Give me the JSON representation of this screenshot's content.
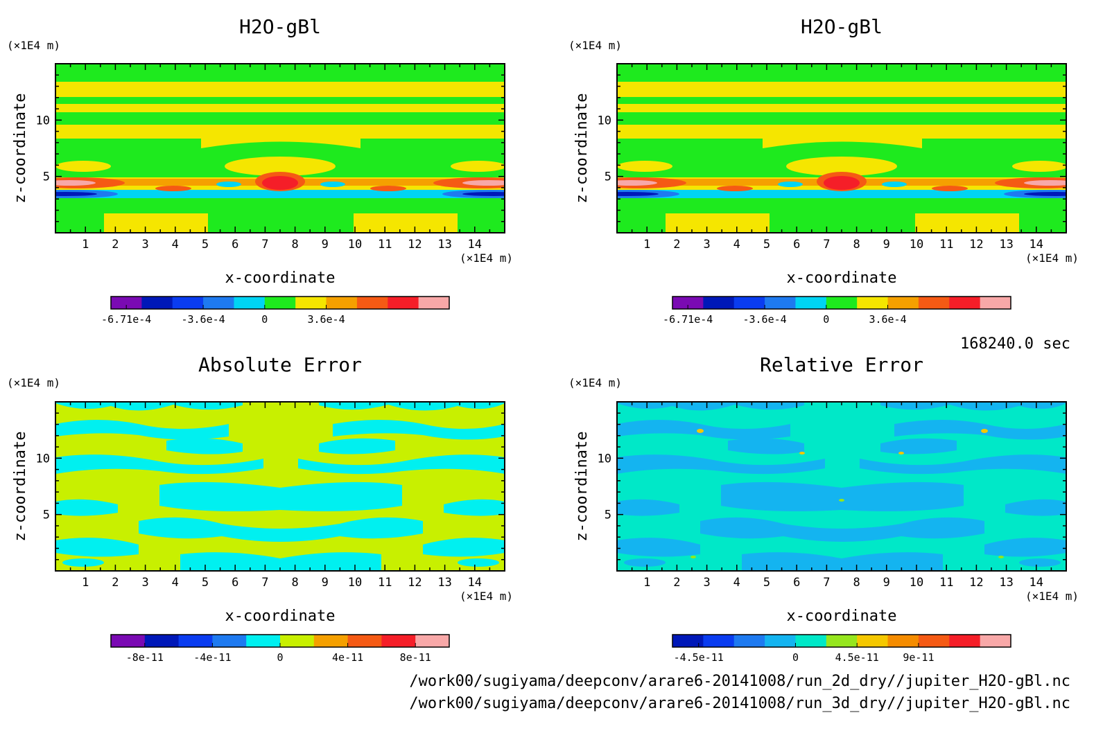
{
  "chart_data": [
    {
      "type": "heatmap",
      "title": "H2O-gBl",
      "xlabel": "x-coordinate",
      "ylabel": "z-coordinate",
      "x_unit": "(×1E4 m)",
      "y_unit": "(×1E4 m)",
      "xlim": [
        0,
        15
      ],
      "ylim": [
        0,
        15
      ],
      "x_ticks": [
        "1",
        "2",
        "3",
        "4",
        "5",
        "6",
        "7",
        "8",
        "9",
        "10",
        "11",
        "12",
        "13",
        "14"
      ],
      "y_ticks": [
        "5",
        "10"
      ],
      "colorbar": {
        "colors": [
          "#7a0ab3",
          "#0018b8",
          "#0a3cf0",
          "#1e7af0",
          "#00d4f4",
          "#1eea1e",
          "#f5e600",
          "#f5a000",
          "#f55a14",
          "#f51e28",
          "#f8a8a8"
        ],
        "labels": [
          "-6.71e-4",
          "-3.6e-4",
          "0",
          "3.6e-4"
        ]
      }
    },
    {
      "type": "heatmap",
      "title": "H2O-gBl",
      "xlabel": "x-coordinate",
      "ylabel": "z-coordinate",
      "x_unit": "(×1E4 m)",
      "y_unit": "(×1E4 m)",
      "xlim": [
        0,
        15
      ],
      "ylim": [
        0,
        15
      ],
      "x_ticks": [
        "1",
        "2",
        "3",
        "4",
        "5",
        "6",
        "7",
        "8",
        "9",
        "10",
        "11",
        "12",
        "13",
        "14"
      ],
      "y_ticks": [
        "5",
        "10"
      ],
      "colorbar": {
        "colors": [
          "#7a0ab3",
          "#0018b8",
          "#0a3cf0",
          "#1e7af0",
          "#00d4f4",
          "#1eea1e",
          "#f5e600",
          "#f5a000",
          "#f55a14",
          "#f51e28",
          "#f8a8a8"
        ],
        "labels": [
          "-6.71e-4",
          "-3.6e-4",
          "0",
          "3.6e-4"
        ]
      }
    },
    {
      "type": "heatmap",
      "title": "Absolute Error",
      "xlabel": "x-coordinate",
      "ylabel": "z-coordinate",
      "x_unit": "(×1E4 m)",
      "y_unit": "(×1E4 m)",
      "xlim": [
        0,
        15
      ],
      "ylim": [
        0,
        15
      ],
      "x_ticks": [
        "1",
        "2",
        "3",
        "4",
        "5",
        "6",
        "7",
        "8",
        "9",
        "10",
        "11",
        "12",
        "13",
        "14"
      ],
      "y_ticks": [
        "5",
        "10"
      ],
      "colorbar": {
        "colors": [
          "#7a0ab3",
          "#0018b8",
          "#0a3cf0",
          "#1e7af0",
          "#00f0f0",
          "#c8f000",
          "#f5a000",
          "#f55a14",
          "#f51e28",
          "#f8a8a8"
        ],
        "labels": [
          "-8e-11",
          "-4e-11",
          "0",
          "4e-11",
          "8e-11"
        ]
      }
    },
    {
      "type": "heatmap",
      "title": "Relative Error",
      "xlabel": "x-coordinate",
      "ylabel": "z-coordinate",
      "x_unit": "(×1E4 m)",
      "y_unit": "(×1E4 m)",
      "xlim": [
        0,
        15
      ],
      "ylim": [
        0,
        15
      ],
      "x_ticks": [
        "1",
        "2",
        "3",
        "4",
        "5",
        "6",
        "7",
        "8",
        "9",
        "10",
        "11",
        "12",
        "13",
        "14"
      ],
      "y_ticks": [
        "5",
        "10"
      ],
      "colorbar": {
        "colors": [
          "#0018b8",
          "#0a3cf0",
          "#1e7af0",
          "#14b4f0",
          "#00e8c8",
          "#96e61e",
          "#f5c800",
          "#f58c00",
          "#f55a14",
          "#f51e28",
          "#f8a8a8"
        ],
        "labels": [
          "-4.5e-11",
          "0",
          "4.5e-11",
          "9e-11"
        ]
      }
    }
  ],
  "time_label": "168240.0 sec",
  "file_paths": [
    "/work00/sugiyama/deepconv/arare6-20141008/run_2d_dry//jupiter_H2O-gBl.nc",
    "/work00/sugiyama/deepconv/arare6-20141008/run_3d_dry//jupiter_H2O-gBl.nc"
  ]
}
